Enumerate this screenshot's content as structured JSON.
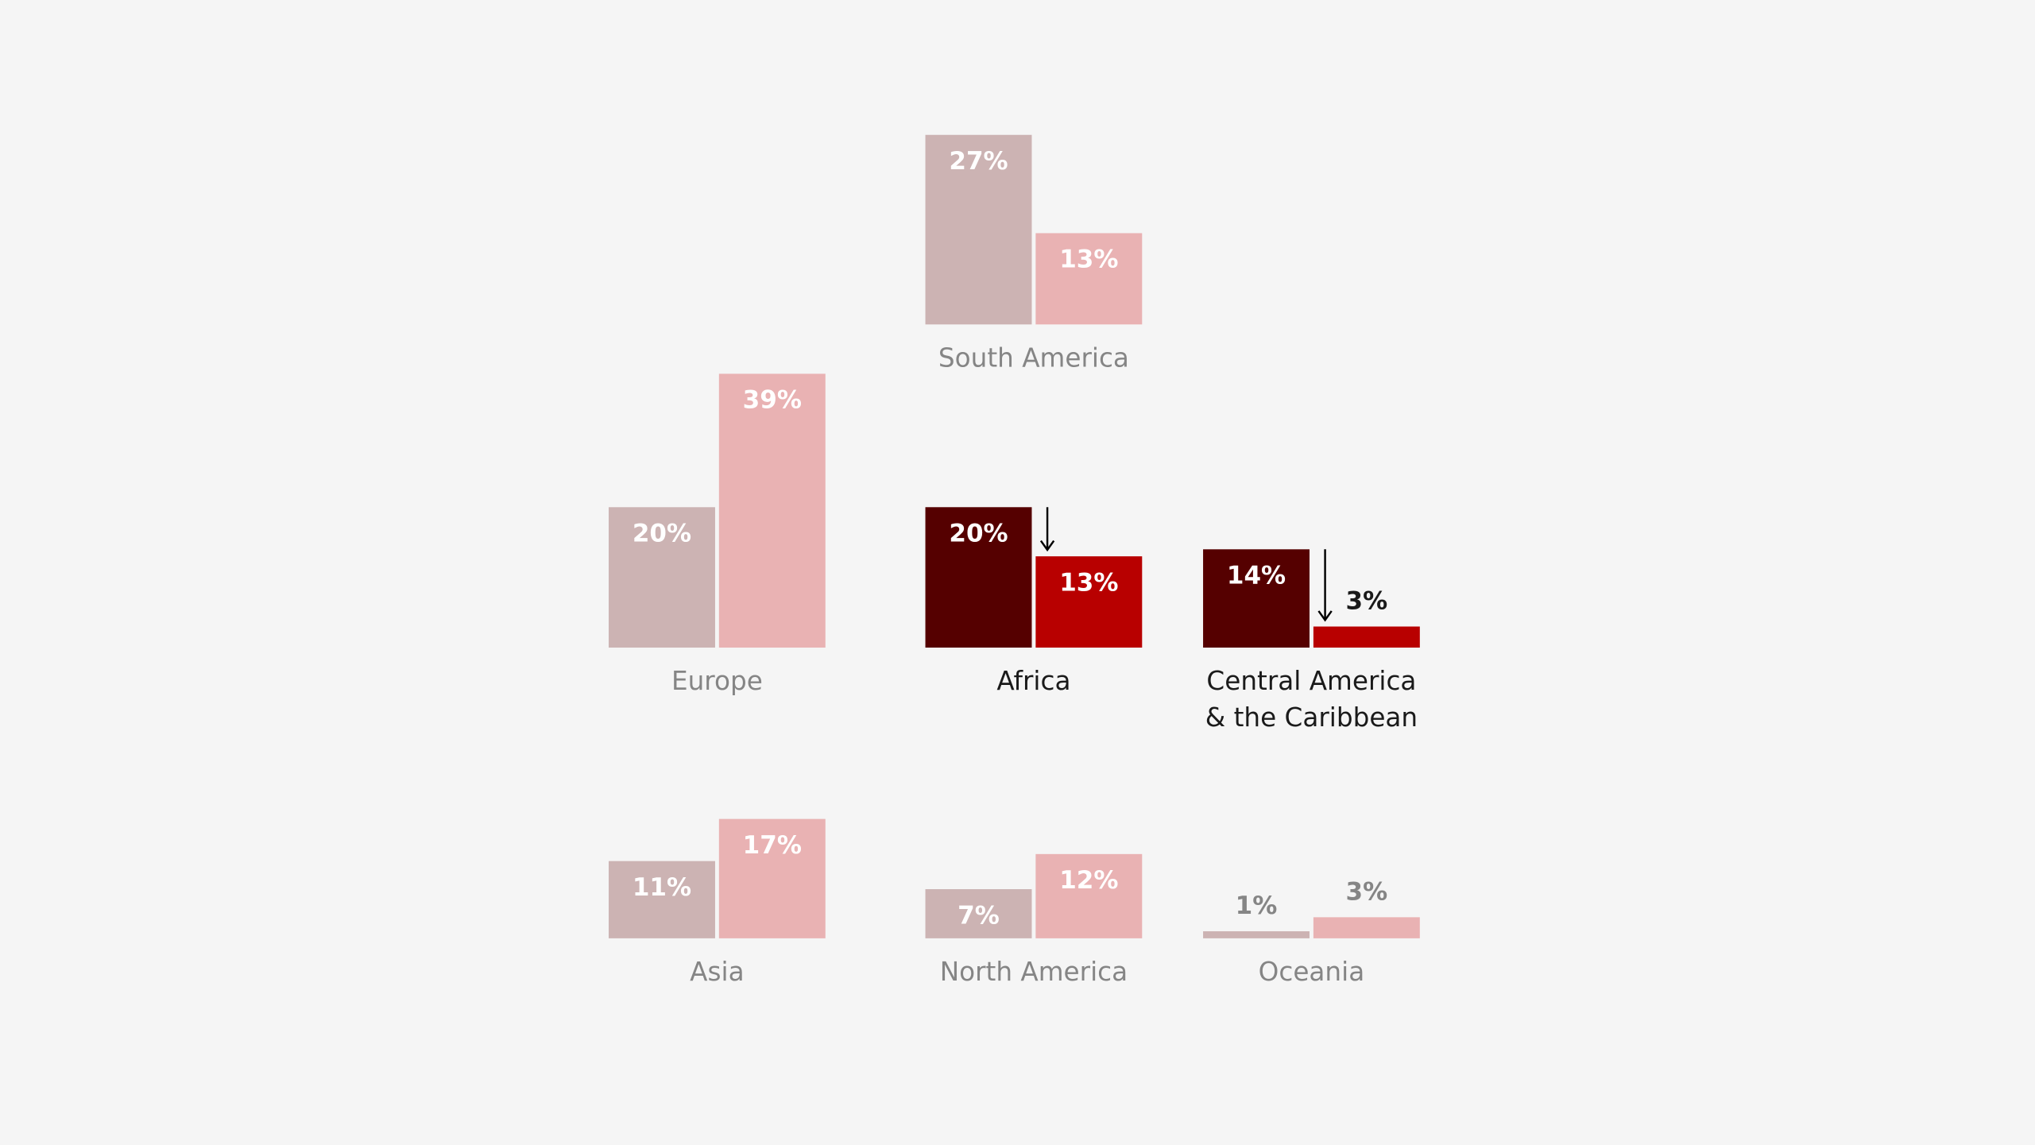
{
  "chart_data": [
    {
      "type": "bar",
      "title": "South America",
      "values": [
        27,
        13
      ],
      "value_labels": [
        "27%",
        "13%"
      ],
      "colors": [
        "#ccb3b3",
        "#e9b2b3"
      ],
      "title_color": "#858585"
    },
    {
      "type": "bar",
      "title": "Europe",
      "values": [
        20,
        39
      ],
      "value_labels": [
        "20%",
        "39%"
      ],
      "colors": [
        "#ccb3b3",
        "#e9b2b3"
      ],
      "title_color": "#858585"
    },
    {
      "type": "bar",
      "title": "Africa",
      "values": [
        20,
        13
      ],
      "value_labels": [
        "20%",
        "13%"
      ],
      "colors": [
        "#550000",
        "#b80000"
      ],
      "title_color": "#1a1a1a",
      "arrow": true
    },
    {
      "type": "bar",
      "title": [
        "Central America",
        "& the Caribbean"
      ],
      "values": [
        14,
        3
      ],
      "value_labels": [
        "14%",
        "3%"
      ],
      "colors": [
        "#550000",
        "#b80000"
      ],
      "title_color": "#1a1a1a",
      "arrow": true
    },
    {
      "type": "bar",
      "title": "Asia",
      "values": [
        11,
        17
      ],
      "value_labels": [
        "11%",
        "17%"
      ],
      "colors": [
        "#ccb3b3",
        "#e9b2b3"
      ],
      "title_color": "#858585"
    },
    {
      "type": "bar",
      "title": "North America",
      "values": [
        7,
        12
      ],
      "value_labels": [
        "7%",
        "12%"
      ],
      "colors": [
        "#ccb3b3",
        "#e9b2b3"
      ],
      "title_color": "#858585"
    },
    {
      "type": "bar",
      "title": "Oceania",
      "values": [
        1,
        3
      ],
      "value_labels": [
        "1%",
        "3%"
      ],
      "colors": [
        "#ccb3b3",
        "#e9b2b3"
      ],
      "title_color": "#858585"
    }
  ]
}
